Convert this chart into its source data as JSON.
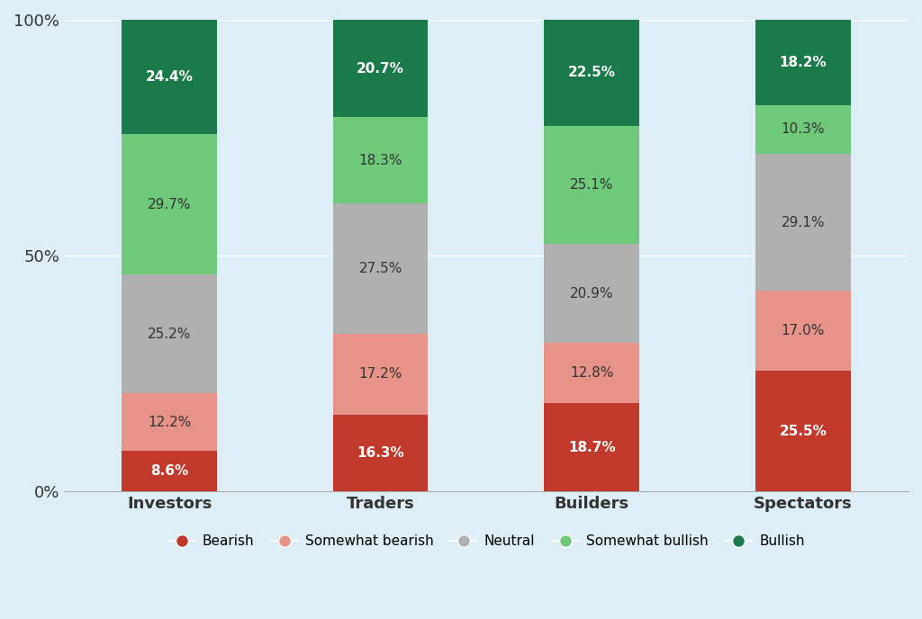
{
  "categories": [
    "Investors",
    "Traders",
    "Builders",
    "Spectators"
  ],
  "segments": [
    {
      "label": "Bearish",
      "color": "#c0392b",
      "values": [
        8.6,
        16.3,
        18.7,
        25.5
      ]
    },
    {
      "label": "Somewhat bearish",
      "color": "#e8938a",
      "values": [
        12.2,
        17.2,
        12.8,
        17.0
      ]
    },
    {
      "label": "Neutral",
      "color": "#b0b0b0",
      "values": [
        25.2,
        27.5,
        20.9,
        29.1
      ]
    },
    {
      "label": "Somewhat bullish",
      "color": "#6ec97a",
      "values": [
        29.7,
        18.3,
        25.1,
        10.3
      ]
    },
    {
      "label": "Bullish",
      "color": "#1a7a4a",
      "values": [
        24.4,
        20.7,
        22.5,
        18.2
      ]
    }
  ],
  "yticks": [
    0,
    50,
    100
  ],
  "ytick_labels": [
    "0%",
    "50%",
    "100%"
  ],
  "background_color": "#ddeef6",
  "bar_width": 0.45,
  "label_color_dark": "#333333",
  "label_color_light": "#ffffff",
  "figsize": [
    10.24,
    6.88
  ],
  "dpi": 100
}
